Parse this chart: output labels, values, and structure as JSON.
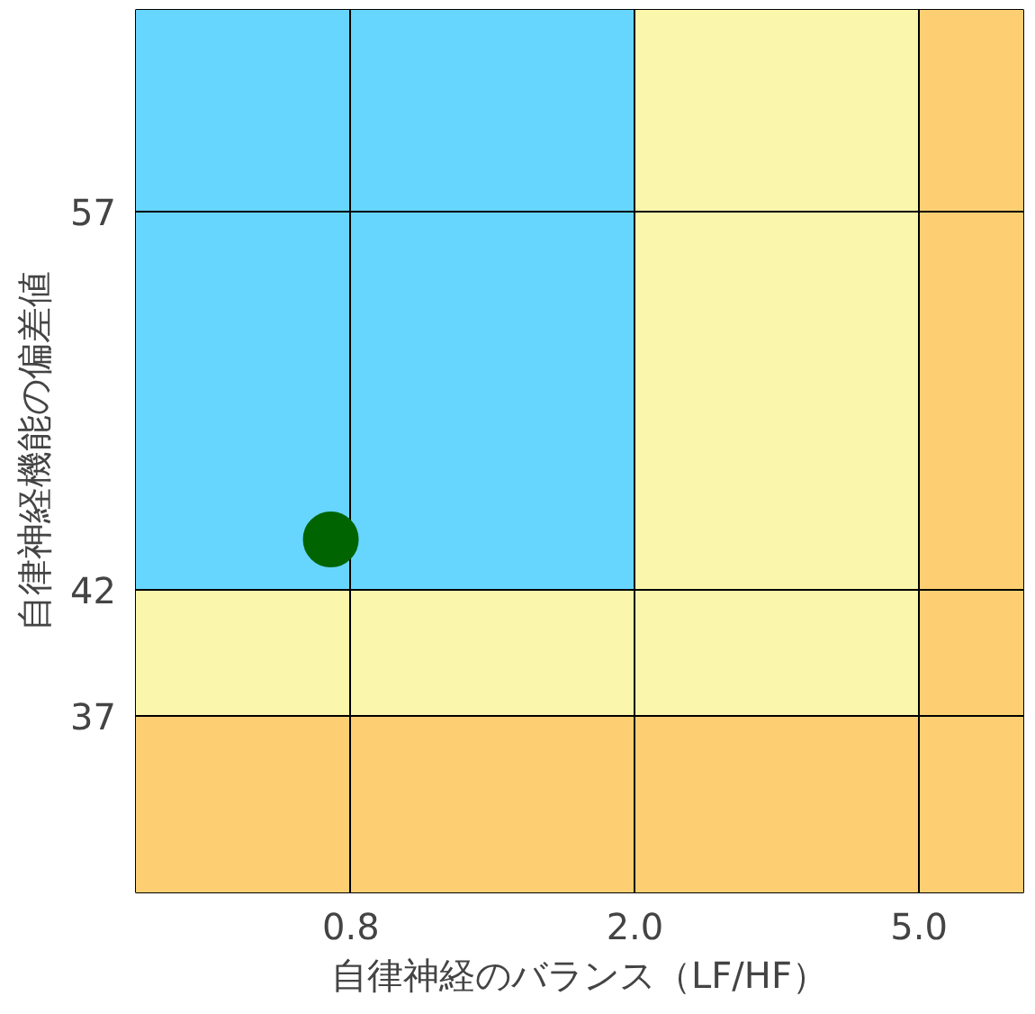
{
  "chart_data": {
    "type": "scatter",
    "xlabel": "自律神経のバランス（LF/HF）",
    "ylabel": "自律神経機能の偏差値",
    "log": "x",
    "xlim": [
      0.4,
      7
    ],
    "xticks": [
      {
        "value": 0.8,
        "label": "0.8"
      },
      {
        "value": 2,
        "label": "2.0"
      },
      {
        "value": 5,
        "label": "5.0"
      }
    ],
    "ylim": [
      30,
      65
    ],
    "yticks": [
      37,
      42,
      57
    ],
    "grid": true,
    "marker": "circle",
    "bands": [
      {
        "axis": "y",
        "from": 42,
        "to": 65,
        "color": "#66d6ff"
      },
      {
        "axis": "x",
        "from": 2,
        "to": 5,
        "color": "#faf6ac"
      },
      {
        "axis": "y",
        "from": 37,
        "to": 42,
        "color": "#faf6ac"
      },
      {
        "axis": "x",
        "from": 5,
        "to": 7,
        "color": "#fdcf72"
      },
      {
        "axis": "y",
        "from": 30,
        "to": 37,
        "color": "#fdcf72"
      }
    ],
    "series": [
      {
        "color": "#006400",
        "x": [
          0.75
        ],
        "values": [
          44
        ]
      }
    ]
  }
}
